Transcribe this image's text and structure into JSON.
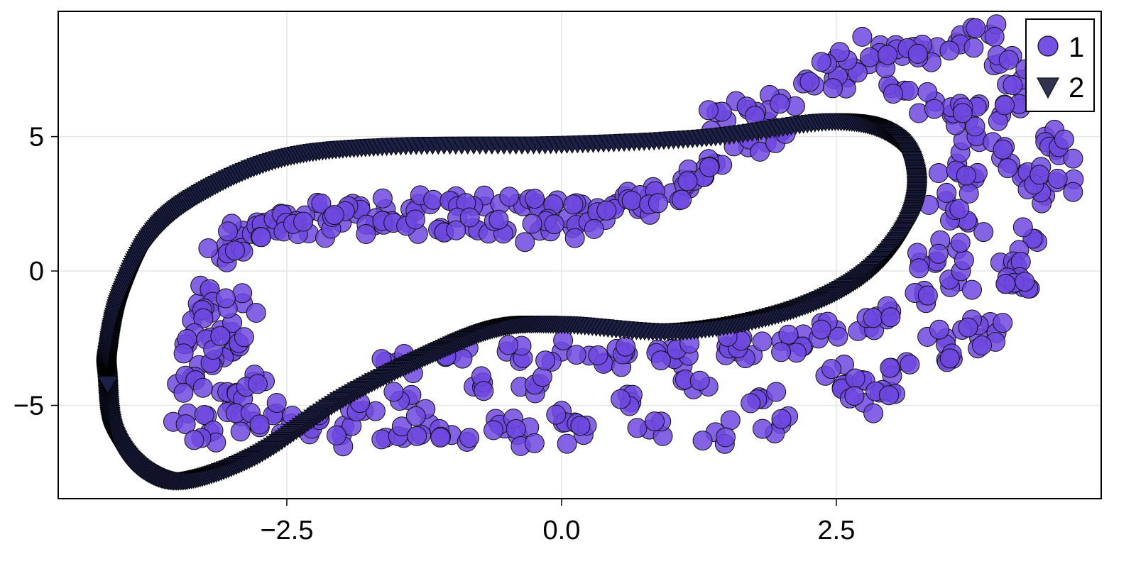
{
  "chart_data": {
    "type": "scatter",
    "title": "",
    "xlabel": "",
    "ylabel": "",
    "xlim": [
      -4.58,
      4.91
    ],
    "ylim": [
      -8.47,
      9.66
    ],
    "grid": true,
    "legend_position": "top-right",
    "x_ticks": [
      {
        "value": -2.5,
        "label": "−2.5"
      },
      {
        "value": 0.0,
        "label": "0.0"
      },
      {
        "value": 2.5,
        "label": "2.5"
      }
    ],
    "y_ticks": [
      {
        "value": 5,
        "label": "5"
      },
      {
        "value": 0,
        "label": "0"
      },
      {
        "value": -5,
        "label": "−5"
      }
    ],
    "series": [
      {
        "name": "1",
        "marker": "circle",
        "color": "#6f48e0",
        "stroke": "#111111",
        "description": "Noisy scattered points around a closed loop (sampled trajectory)",
        "bands": [
          {
            "region": "upper-inner band",
            "x_range": [
              -2.8,
              2.0
            ],
            "y_range": [
              1.3,
              5.5
            ]
          },
          {
            "region": "left lobe",
            "x_range": [
              -3.6,
              -2.6
            ],
            "y_range": [
              -6.0,
              1.8
            ]
          },
          {
            "region": "lower wide band",
            "x_range": [
              -2.8,
              3.1
            ],
            "y_range": [
              -6.3,
              -1.5
            ]
          },
          {
            "region": "right outer arc",
            "x_range": [
              2.0,
              4.6
            ],
            "y_range": [
              -3.5,
              8.9
            ]
          }
        ],
        "points": [
          [
            -3.1,
            0.5
          ],
          [
            -3.0,
            1.0
          ],
          [
            -2.9,
            1.5
          ],
          [
            -2.7,
            1.8
          ],
          [
            -2.5,
            2.1
          ],
          [
            -2.2,
            2.2
          ],
          [
            -1.9,
            2.5
          ],
          [
            -1.6,
            2.3
          ],
          [
            -1.3,
            2.5
          ],
          [
            -1.0,
            2.6
          ],
          [
            -0.7,
            2.4
          ],
          [
            -0.4,
            2.5
          ],
          [
            -0.1,
            2.3
          ],
          [
            0.2,
            2.2
          ],
          [
            0.5,
            2.5
          ],
          [
            0.8,
            2.8
          ],
          [
            1.1,
            3.4
          ],
          [
            1.4,
            4.0
          ],
          [
            1.7,
            4.6
          ],
          [
            2.0,
            5.2
          ],
          [
            -2.6,
            1.6
          ],
          [
            -2.3,
            1.4
          ],
          [
            -2.0,
            1.8
          ],
          [
            -1.7,
            1.7
          ],
          [
            -1.4,
            1.8
          ],
          [
            -1.1,
            1.6
          ],
          [
            -0.8,
            1.6
          ],
          [
            -0.5,
            1.5
          ],
          [
            -0.2,
            1.5
          ],
          [
            0.1,
            1.6
          ],
          [
            0.4,
            1.9
          ],
          [
            0.7,
            2.3
          ],
          [
            1.0,
            2.9
          ],
          [
            1.3,
            3.5
          ],
          [
            -3.2,
            -0.8
          ],
          [
            -3.3,
            -1.5
          ],
          [
            -3.1,
            -2.2
          ],
          [
            -3.4,
            -2.7
          ],
          [
            -3.0,
            -3.0
          ],
          [
            -3.3,
            -3.5
          ],
          [
            -3.5,
            -4.2
          ],
          [
            -3.1,
            -4.5
          ],
          [
            -3.4,
            -5.3
          ],
          [
            -3.0,
            -5.0
          ],
          [
            -2.8,
            -5.6
          ],
          [
            -3.2,
            -6.0
          ],
          [
            -2.9,
            -1.2
          ],
          [
            -3.0,
            -2.6
          ],
          [
            -2.7,
            -4.1
          ],
          [
            -2.6,
            -5.3
          ],
          [
            -2.4,
            -5.8
          ],
          [
            -2.2,
            -5.5
          ],
          [
            -2.0,
            -6.1
          ],
          [
            -1.8,
            -5.2
          ],
          [
            -1.6,
            -6.2
          ],
          [
            -1.4,
            -4.8
          ],
          [
            -1.2,
            -5.7
          ],
          [
            -1.0,
            -6.1
          ],
          [
            -0.8,
            -4.3
          ],
          [
            -0.6,
            -5.5
          ],
          [
            -0.4,
            -6.1
          ],
          [
            -0.2,
            -4.2
          ],
          [
            0.0,
            -5.2
          ],
          [
            0.2,
            -6.1
          ],
          [
            0.4,
            -3.4
          ],
          [
            0.6,
            -4.6
          ],
          [
            0.8,
            -5.9
          ],
          [
            1.0,
            -3.2
          ],
          [
            1.2,
            -4.4
          ],
          [
            1.4,
            -6.0
          ],
          [
            1.6,
            -3.0
          ],
          [
            1.8,
            -4.7
          ],
          [
            2.0,
            -5.7
          ],
          [
            2.2,
            -2.8
          ],
          [
            2.4,
            -3.9
          ],
          [
            2.6,
            -4.2
          ],
          [
            2.8,
            -2.1
          ],
          [
            3.0,
            -3.6
          ],
          [
            2.75,
            -4.9
          ],
          [
            3.0,
            -4.5
          ],
          [
            -1.5,
            -3.4
          ],
          [
            -1.0,
            -3.1
          ],
          [
            -0.5,
            -3.0
          ],
          [
            0.0,
            -3.0
          ],
          [
            0.5,
            -2.9
          ],
          [
            1.0,
            -2.9
          ],
          [
            1.5,
            -2.8
          ],
          [
            2.0,
            -2.6
          ],
          [
            2.5,
            -2.2
          ],
          [
            3.0,
            -1.5
          ],
          [
            3.3,
            -0.9
          ],
          [
            3.6,
            -0.4
          ],
          [
            3.4,
            0.3
          ],
          [
            3.6,
            0.8
          ],
          [
            3.7,
            1.8
          ],
          [
            3.5,
            2.6
          ],
          [
            3.7,
            3.3
          ],
          [
            3.6,
            4.0
          ],
          [
            3.8,
            4.8
          ],
          [
            3.7,
            5.6
          ],
          [
            3.4,
            6.3
          ],
          [
            3.0,
            6.8
          ],
          [
            2.6,
            7.2
          ],
          [
            2.3,
            6.9
          ],
          [
            2.0,
            6.4
          ],
          [
            2.8,
            7.7
          ],
          [
            3.3,
            8.2
          ],
          [
            3.6,
            8.5
          ],
          [
            3.9,
            8.8
          ],
          [
            4.1,
            8.0
          ],
          [
            4.3,
            7.5
          ],
          [
            4.2,
            6.6
          ],
          [
            4.0,
            5.8
          ],
          [
            4.4,
            5.0
          ],
          [
            4.5,
            4.5
          ],
          [
            4.2,
            3.6
          ],
          [
            4.4,
            2.8
          ],
          [
            4.5,
            3.3
          ],
          [
            4.3,
            1.2
          ],
          [
            4.1,
            0.2
          ],
          [
            4.2,
            -0.6
          ],
          [
            3.9,
            -1.9
          ],
          [
            3.5,
            -2.5
          ],
          [
            3.5,
            -3.3
          ],
          [
            3.8,
            -2.5
          ],
          [
            4.1,
            -0.5
          ],
          [
            2.5,
            7.9
          ],
          [
            2.9,
            8.4
          ],
          [
            3.1,
            8.0
          ],
          [
            1.7,
            6.0
          ],
          [
            1.5,
            5.6
          ],
          [
            3.8,
            6.2
          ],
          [
            4.0,
            4.2
          ]
        ]
      },
      {
        "name": "2",
        "marker": "triangle-down",
        "color": "#1c2045",
        "stroke": "#000000",
        "description": "Smooth closed orbit (dense markers along a closed curve)",
        "curve": [
          [
            -4.13,
            -4.1
          ],
          [
            -4.13,
            -3.1
          ],
          [
            -4.02,
            -1.0
          ],
          [
            -3.73,
            1.4
          ],
          [
            -3.28,
            2.95
          ],
          [
            -2.52,
            4.27
          ],
          [
            -1.55,
            4.7
          ],
          [
            0.0,
            4.77
          ],
          [
            1.36,
            5.04
          ],
          [
            2.49,
            5.62
          ],
          [
            3.03,
            5.04
          ],
          [
            3.23,
            3.46
          ],
          [
            3.13,
            1.64
          ],
          [
            2.71,
            -0.21
          ],
          [
            2.0,
            -1.53
          ],
          [
            1.04,
            -2.19
          ],
          [
            0.0,
            -1.93
          ],
          [
            -0.57,
            -2.06
          ],
          [
            -1.22,
            -3.11
          ],
          [
            -1.99,
            -4.7
          ],
          [
            -2.77,
            -6.81
          ],
          [
            -3.42,
            -7.74
          ],
          [
            -3.81,
            -7.34
          ],
          [
            -4.07,
            -6.0
          ],
          [
            -4.13,
            -4.1
          ]
        ]
      }
    ]
  },
  "legend": {
    "items": [
      {
        "label": "1",
        "marker": "circle",
        "color": "#7552e3"
      },
      {
        "label": "2",
        "marker": "triangle-down",
        "color": "#2f3350"
      }
    ]
  },
  "colors": {
    "grid": "#e6e6e6",
    "axis": "#000000",
    "series1_fill": "#6f48e0",
    "series2_fill": "#1c2045"
  }
}
